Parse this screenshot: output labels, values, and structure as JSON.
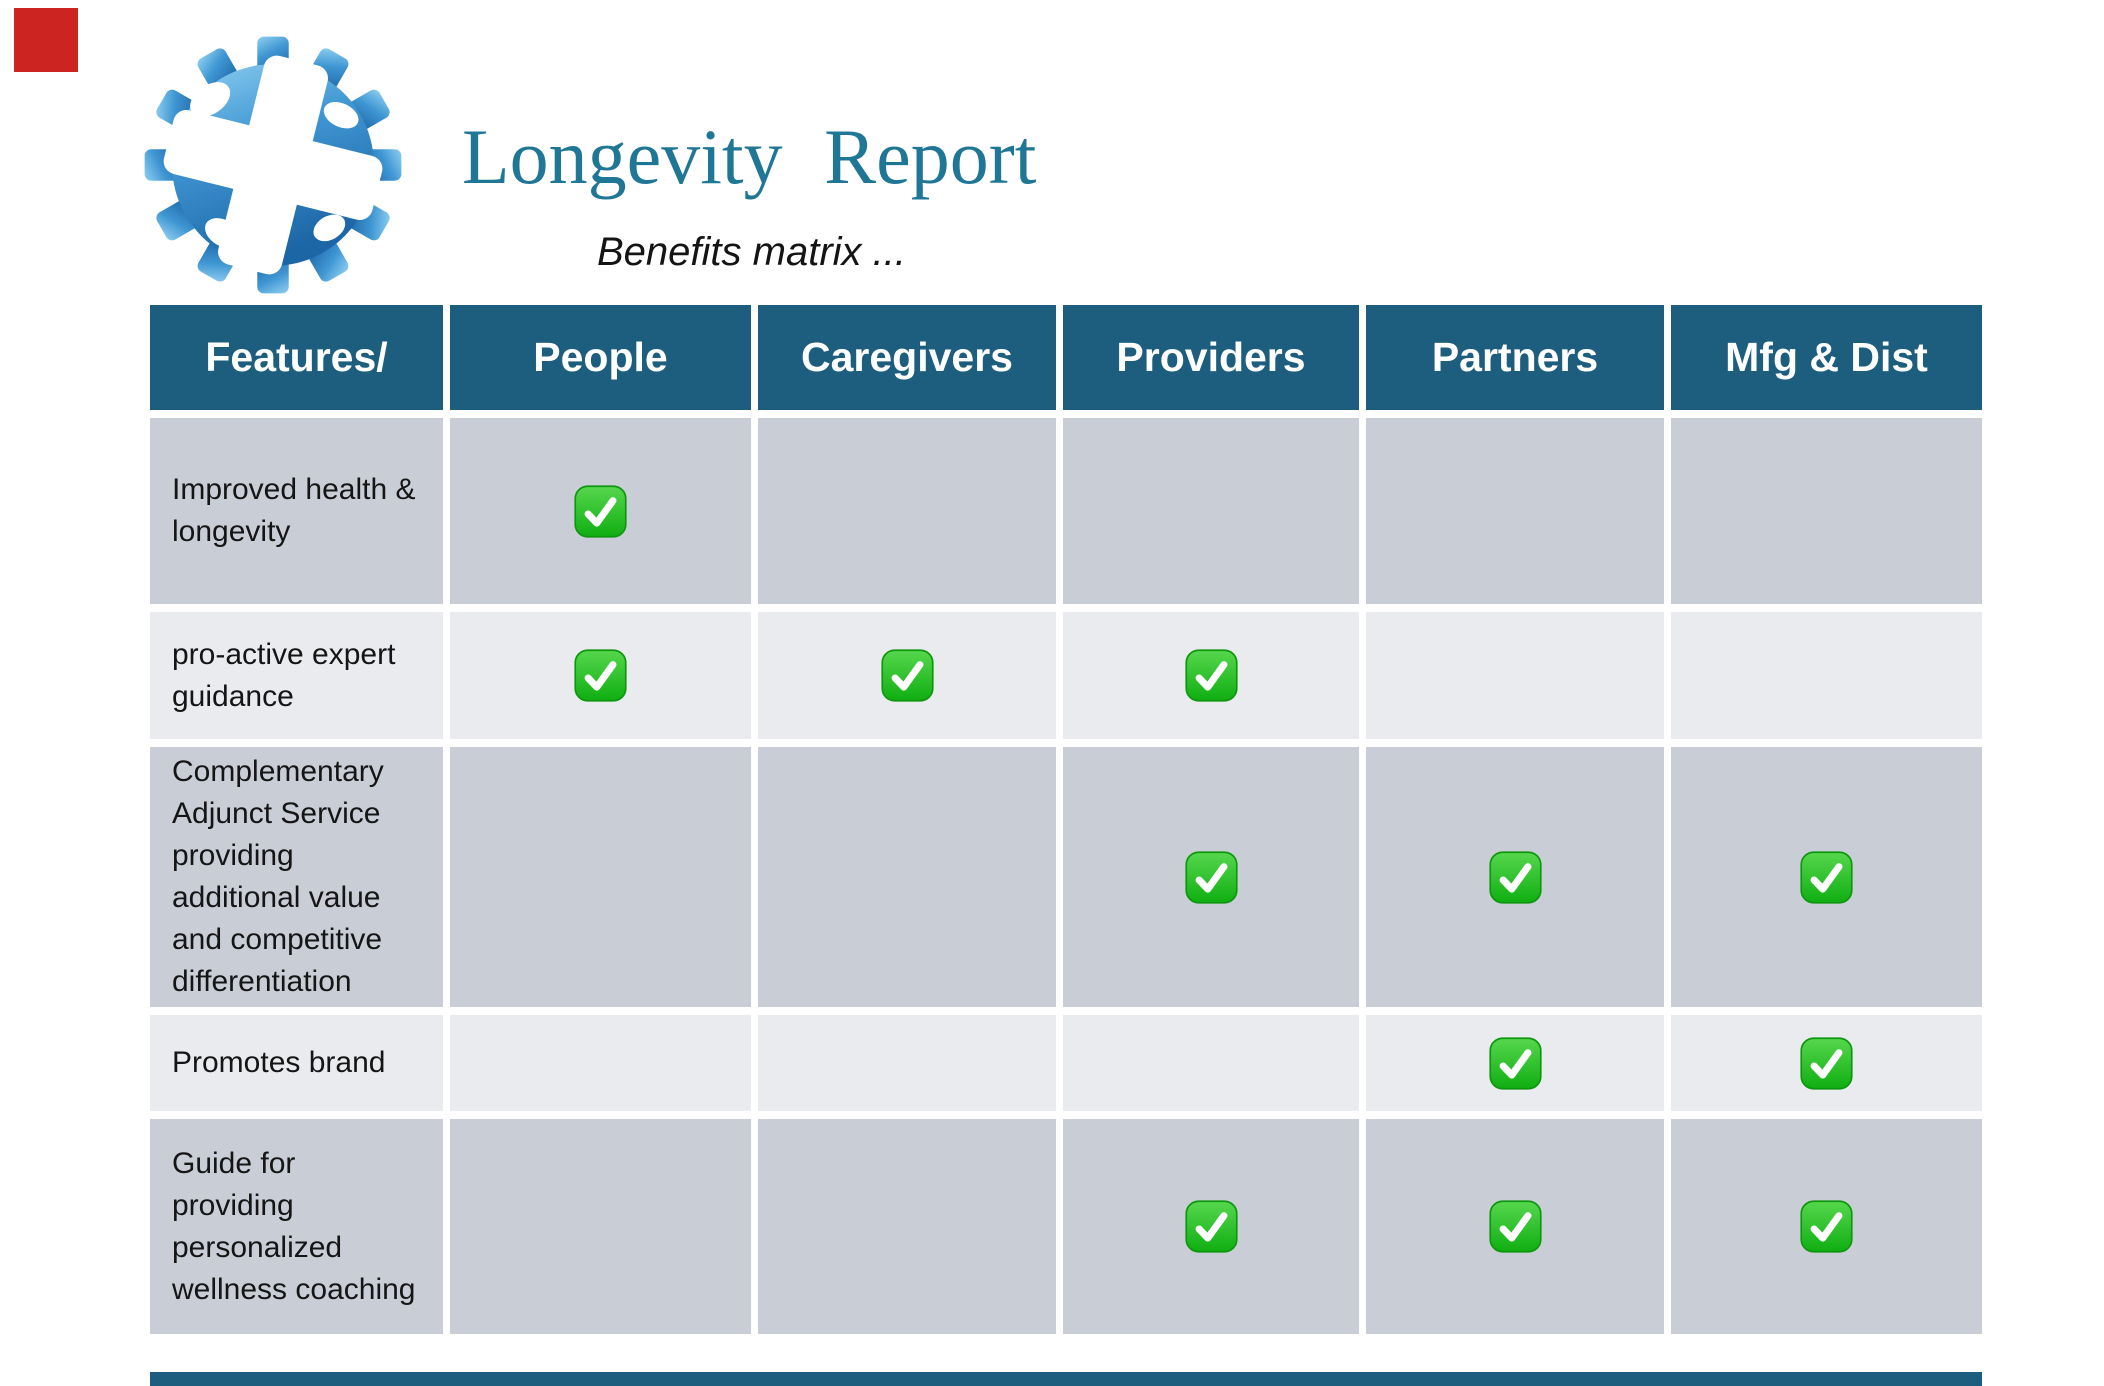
{
  "header": {
    "title": "Longevity Report",
    "subtitle": "Benefits matrix ...",
    "logo_icon": "blue-gear-with-cross-logo"
  },
  "colors": {
    "title_text": "#1f7795",
    "table_header_bg": "#1d5e7e",
    "table_header_text": "#ffffff",
    "row_dark_bg": "#c9ced6",
    "row_light_bg": "#e9ebef",
    "body_text": "#151515",
    "check_green": "#1db61f",
    "red_square": "#cc2420",
    "bottom_bar": "#1d5e7e"
  },
  "table": {
    "columns": [
      "Features/",
      "People",
      "Caregivers",
      "Providers",
      "Partners",
      "Mfg & Dist"
    ],
    "check_icon": "green-check-emoji",
    "rows": [
      {
        "feature": "Improved health & longevity",
        "checks": [
          true,
          false,
          false,
          false,
          false
        ]
      },
      {
        "feature": "pro-active expert guidance",
        "checks": [
          true,
          true,
          true,
          false,
          false
        ]
      },
      {
        "feature": "Complementary Adjunct Service providing additional value and competitive differentiation",
        "checks": [
          false,
          false,
          true,
          true,
          true
        ]
      },
      {
        "feature": "Promotes brand",
        "checks": [
          false,
          false,
          false,
          true,
          true
        ]
      },
      {
        "feature": "Guide for providing personalized wellness coaching",
        "checks": [
          false,
          false,
          true,
          true,
          true
        ]
      }
    ]
  }
}
